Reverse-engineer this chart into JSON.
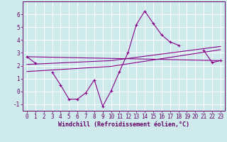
{
  "xlabel": "Windchill (Refroidissement éolien,°C)",
  "background_color": "#ceeaec",
  "grid_color": "#ffffff",
  "line_color": "#880088",
  "x_hours": [
    0,
    1,
    2,
    3,
    4,
    5,
    6,
    7,
    8,
    9,
    10,
    11,
    12,
    13,
    14,
    15,
    16,
    17,
    18,
    19,
    20,
    21,
    22,
    23
  ],
  "main_y": [
    2.7,
    2.2,
    null,
    1.5,
    0.5,
    -0.6,
    -0.6,
    -0.1,
    0.9,
    -1.15,
    0.05,
    1.55,
    3.0,
    5.2,
    6.25,
    5.3,
    4.4,
    3.85,
    3.6,
    null,
    null,
    3.2,
    2.25,
    2.4
  ],
  "line1_x": [
    0,
    23
  ],
  "line1_y": [
    2.7,
    2.4
  ],
  "line2_x": [
    0,
    10,
    23
  ],
  "line2_y": [
    2.1,
    2.4,
    3.5
  ],
  "line3_x": [
    0,
    10,
    23
  ],
  "line3_y": [
    1.55,
    1.95,
    3.25
  ],
  "ylim": [
    -1.5,
    7.0
  ],
  "yticks": [
    -1,
    0,
    1,
    2,
    3,
    4,
    5,
    6
  ],
  "xlim": [
    -0.5,
    23.5
  ],
  "xticks": [
    0,
    1,
    2,
    3,
    4,
    5,
    6,
    7,
    8,
    9,
    10,
    11,
    12,
    13,
    14,
    15,
    16,
    17,
    18,
    19,
    20,
    21,
    22,
    23
  ],
  "xlabel_fontsize": 6.0,
  "tick_fontsize": 5.5,
  "figwidth": 3.2,
  "figheight": 2.0,
  "dpi": 100
}
